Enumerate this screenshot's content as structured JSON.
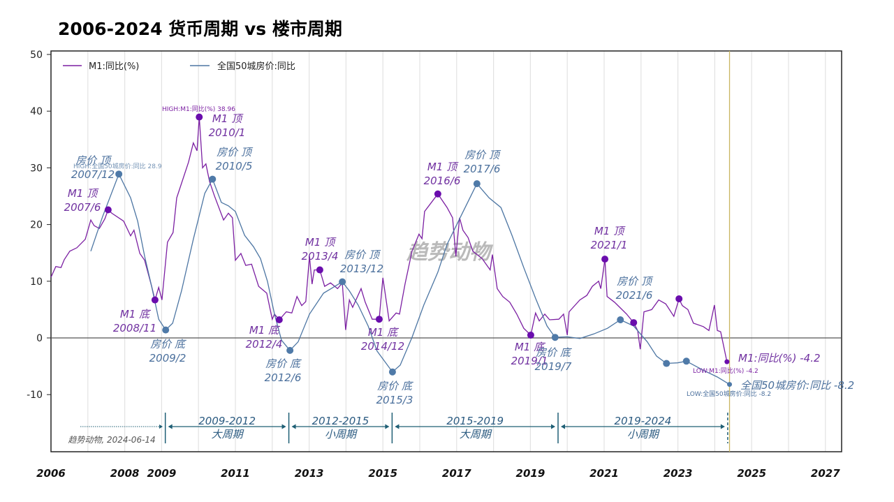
{
  "title": "2006-2024 货币周期 vs 楼市周期",
  "watermark": "趋势动物",
  "source_note": "趋势动物, 2024-06-14",
  "colors": {
    "m1": "#7b1fa2",
    "m1_dot": "#6a0dad",
    "house": "#4d76a3",
    "house_dot": "#4f7aa8",
    "m1_text": "#7030a0",
    "house_text": "#4a6f9c",
    "period": "#1f5f75",
    "marker_line": "#c8b560"
  },
  "chart_data": {
    "type": "line",
    "title": "2006-2024 货币周期 vs 楼市周期",
    "xlabel": "",
    "ylabel": "",
    "xlim": [
      2006,
      2027.5
    ],
    "ylim": [
      -20,
      50
    ],
    "x_ticks": [
      "2006",
      "2008",
      "2009",
      "2011",
      "2013",
      "2015",
      "2017",
      "2019",
      "2021",
      "2023",
      "2025",
      "2027"
    ],
    "y_ticks": [
      "50",
      "40",
      "30",
      "20",
      "10",
      "0",
      "-10"
    ],
    "grid": "vertical yearly",
    "legend": "top-left",
    "current_date_line": 2024.4,
    "series": [
      {
        "name": "M1:同比(%)",
        "color": "#7b1fa2",
        "x": [
          2006.0,
          2006.13,
          2006.27,
          2006.36,
          2006.51,
          2006.7,
          2006.93,
          2007.08,
          2007.17,
          2007.31,
          2007.46,
          2007.55,
          2007.65,
          2007.97,
          2008.16,
          2008.25,
          2008.41,
          2008.54,
          2008.73,
          2008.82,
          2008.92,
          2009.01,
          2009.16,
          2009.31,
          2009.41,
          2009.73,
          2009.86,
          2009.96,
          2010.02,
          2010.11,
          2010.2,
          2010.3,
          2010.43,
          2010.68,
          2010.81,
          2010.92,
          2011.0,
          2011.15,
          2011.28,
          2011.44,
          2011.63,
          2011.85,
          2012.0,
          2012.06,
          2012.19,
          2012.38,
          2012.53,
          2012.67,
          2012.8,
          2012.91,
          2013.01,
          2013.08,
          2013.14,
          2013.29,
          2013.42,
          2013.58,
          2013.77,
          2013.9,
          2013.99,
          2014.09,
          2014.18,
          2014.41,
          2014.52,
          2014.71,
          2014.9,
          2015.0,
          2015.17,
          2015.36,
          2015.45,
          2015.6,
          2015.79,
          2015.98,
          2016.06,
          2016.13,
          2016.49,
          2016.74,
          2016.89,
          2016.98,
          2017.08,
          2017.17,
          2017.31,
          2017.44,
          2017.69,
          2017.91,
          2017.97,
          2018.1,
          2018.25,
          2018.44,
          2018.63,
          2018.82,
          2019.01,
          2019.14,
          2019.24,
          2019.39,
          2019.52,
          2019.77,
          2019.9,
          2020.0,
          2020.05,
          2020.34,
          2020.53,
          2020.68,
          2020.85,
          2020.91,
          2021.02,
          2021.08,
          2021.28,
          2021.61,
          2021.8,
          2021.91,
          2021.98,
          2022.08,
          2022.29,
          2022.48,
          2022.67,
          2022.89,
          2023.03,
          2023.12,
          2023.27,
          2023.42,
          2023.69,
          2023.84,
          2023.99,
          2024.07,
          2024.16,
          2024.33
        ],
        "y": [
          10.7,
          12.6,
          12.4,
          13.8,
          15.3,
          15.9,
          17.4,
          20.8,
          19.8,
          19.3,
          21.0,
          22.6,
          22.0,
          20.6,
          18.0,
          19.0,
          14.9,
          13.7,
          9.1,
          6.7,
          8.9,
          6.7,
          16.9,
          18.6,
          24.7,
          31.0,
          34.4,
          33.0,
          38.96,
          30.0,
          30.7,
          27.6,
          25.1,
          20.8,
          22.0,
          21.2,
          13.7,
          14.9,
          12.8,
          13.0,
          9.1,
          7.9,
          3.3,
          4.2,
          3.2,
          4.6,
          4.4,
          7.3,
          5.7,
          6.4,
          14.4,
          9.5,
          12.0,
          12.0,
          9.1,
          9.7,
          8.7,
          9.7,
          1.4,
          6.7,
          5.4,
          8.7,
          6.3,
          3.3,
          3.3,
          10.6,
          3.0,
          4.4,
          4.2,
          9.5,
          15.3,
          18.3,
          17.5,
          22.3,
          25.4,
          23.0,
          21.2,
          14.4,
          21.2,
          19.0,
          17.7,
          15.3,
          14.0,
          12.0,
          14.7,
          8.7,
          7.3,
          6.3,
          4.2,
          1.7,
          0.5,
          4.4,
          3.0,
          4.2,
          3.2,
          3.3,
          4.2,
          0.5,
          4.6,
          6.7,
          7.5,
          9.1,
          10.0,
          8.7,
          13.9,
          7.3,
          6.3,
          4.2,
          2.7,
          1.3,
          -2.0,
          4.6,
          5.0,
          6.7,
          6.0,
          3.8,
          6.9,
          5.7,
          5.0,
          2.6,
          2.0,
          1.3,
          5.8,
          1.3,
          1.1,
          -4.2
        ]
      },
      {
        "name": "全国50城房价:同比",
        "color": "#4d76a3",
        "x": [
          2007.08,
          2007.4,
          2007.84,
          2008.16,
          2008.35,
          2008.54,
          2008.73,
          2008.92,
          2009.11,
          2009.3,
          2009.54,
          2009.86,
          2010.17,
          2010.38,
          2010.62,
          2010.81,
          2011.0,
          2011.25,
          2011.49,
          2011.68,
          2011.87,
          2012.06,
          2012.25,
          2012.48,
          2012.7,
          2013.01,
          2013.39,
          2013.65,
          2013.9,
          2014.09,
          2014.33,
          2014.6,
          2014.84,
          2015.26,
          2015.47,
          2015.79,
          2016.11,
          2016.49,
          2016.74,
          2017.11,
          2017.55,
          2017.88,
          2018.2,
          2018.5,
          2018.82,
          2019.14,
          2019.45,
          2019.67,
          2020.0,
          2020.34,
          2020.72,
          2021.09,
          2021.44,
          2021.8,
          2022.17,
          2022.42,
          2022.69,
          2022.99,
          2023.23,
          2023.69,
          2024.07,
          2024.4
        ],
        "y": [
          15.3,
          21.4,
          28.9,
          24.7,
          20.6,
          14.4,
          9.1,
          3.3,
          1.4,
          2.6,
          8.3,
          17.4,
          25.5,
          28.0,
          23.9,
          23.3,
          22.3,
          18.1,
          16.1,
          14.0,
          10.0,
          4.2,
          -0.4,
          -2.2,
          -0.7,
          4.2,
          7.9,
          8.9,
          9.9,
          8.3,
          5.8,
          2.1,
          -2.3,
          -6.0,
          -4.8,
          0.1,
          5.8,
          11.6,
          16.5,
          21.4,
          27.2,
          24.7,
          23.0,
          18.1,
          12.4,
          7.0,
          2.1,
          0.1,
          0.2,
          -0.1,
          0.7,
          1.7,
          3.2,
          2.1,
          -0.7,
          -3.2,
          -4.5,
          -4.4,
          -4.1,
          -5.7,
          -6.9,
          -8.2
        ]
      }
    ],
    "markers": [
      {
        "series": 0,
        "x": 2007.55,
        "y": 22.6,
        "label": [
          "M1 顶",
          "2007/6"
        ]
      },
      {
        "series": 0,
        "x": 2008.82,
        "y": 6.7,
        "label": [
          "M1 底",
          "2008/11"
        ]
      },
      {
        "series": 0,
        "x": 2010.02,
        "y": 38.96,
        "label": [
          "M1 顶",
          "2010/1"
        ]
      },
      {
        "series": 0,
        "x": 2012.19,
        "y": 3.2,
        "label": [
          "M1 底",
          "2012/4"
        ]
      },
      {
        "series": 0,
        "x": 2013.29,
        "y": 12.0,
        "label": [
          "M1 顶",
          "2013/4"
        ]
      },
      {
        "series": 0,
        "x": 2014.9,
        "y": 3.3,
        "label": [
          "M1 底",
          "2014/12"
        ]
      },
      {
        "series": 0,
        "x": 2016.49,
        "y": 25.4,
        "label": [
          "M1 顶",
          "2016/6"
        ]
      },
      {
        "series": 0,
        "x": 2019.01,
        "y": 0.5,
        "label": [
          "M1 底",
          "2019/1"
        ]
      },
      {
        "series": 0,
        "x": 2021.02,
        "y": 13.9,
        "label": [
          "M1 顶",
          "2021/1"
        ]
      },
      {
        "series": 0,
        "x": 2021.8,
        "y": 2.7,
        "label": []
      },
      {
        "series": 0,
        "x": 2023.03,
        "y": 6.9,
        "label": []
      },
      {
        "series": 0,
        "x": 2024.33,
        "y": -4.2,
        "label": []
      },
      {
        "series": 1,
        "x": 2007.84,
        "y": 28.9,
        "label": [
          "房价 顶",
          "2007/12"
        ]
      },
      {
        "series": 1,
        "x": 2009.11,
        "y": 1.4,
        "label": [
          "房价 底",
          "2009/2"
        ]
      },
      {
        "series": 1,
        "x": 2010.38,
        "y": 28.0,
        "label": [
          "房价 顶",
          "2010/5"
        ]
      },
      {
        "series": 1,
        "x": 2012.48,
        "y": -2.2,
        "label": [
          "房价 底",
          "2012/6"
        ]
      },
      {
        "series": 1,
        "x": 2013.9,
        "y": 9.9,
        "label": [
          "房价 顶",
          "2013/12"
        ]
      },
      {
        "series": 1,
        "x": 2015.26,
        "y": -6.0,
        "label": [
          "房价 底",
          "2015/3"
        ]
      },
      {
        "series": 1,
        "x": 2017.55,
        "y": 27.2,
        "label": [
          "房价 顶",
          "2017/6"
        ]
      },
      {
        "series": 1,
        "x": 2019.67,
        "y": 0.1,
        "label": [
          "房价 底",
          "2019/7"
        ]
      },
      {
        "series": 1,
        "x": 2021.44,
        "y": 3.2,
        "label": [
          "房价 顶",
          "2021/6"
        ]
      },
      {
        "series": 1,
        "x": 2022.69,
        "y": -4.5,
        "label": []
      },
      {
        "series": 1,
        "x": 2023.23,
        "y": -4.1,
        "label": []
      },
      {
        "series": 1,
        "x": 2024.4,
        "y": -8.2,
        "label": []
      }
    ],
    "high_low_labels": {
      "m1_high": "HIGH:M1:同比(%) 38.96",
      "house_high": "HIGH:全国50城房价:同比 28.9",
      "m1_last": "M1:同比(%) -4.2",
      "m1_low": "LOW:M1:同比(%) -4.2",
      "house_last": "全国50城房价:同比 -8.2",
      "house_low": "LOW:全国50城房价:同比 -8.2"
    },
    "periods": [
      {
        "range": "2009-2012",
        "kind": "大周期",
        "start": 2009.1,
        "end": 2012.45
      },
      {
        "range": "2012-2015",
        "kind": "小周期",
        "start": 2012.45,
        "end": 2015.25
      },
      {
        "range": "2015-2019",
        "kind": "大周期",
        "start": 2015.25,
        "end": 2019.75
      },
      {
        "range": "2019-2024",
        "kind": "小周期",
        "start": 2019.75,
        "end": 2024.35
      }
    ]
  }
}
